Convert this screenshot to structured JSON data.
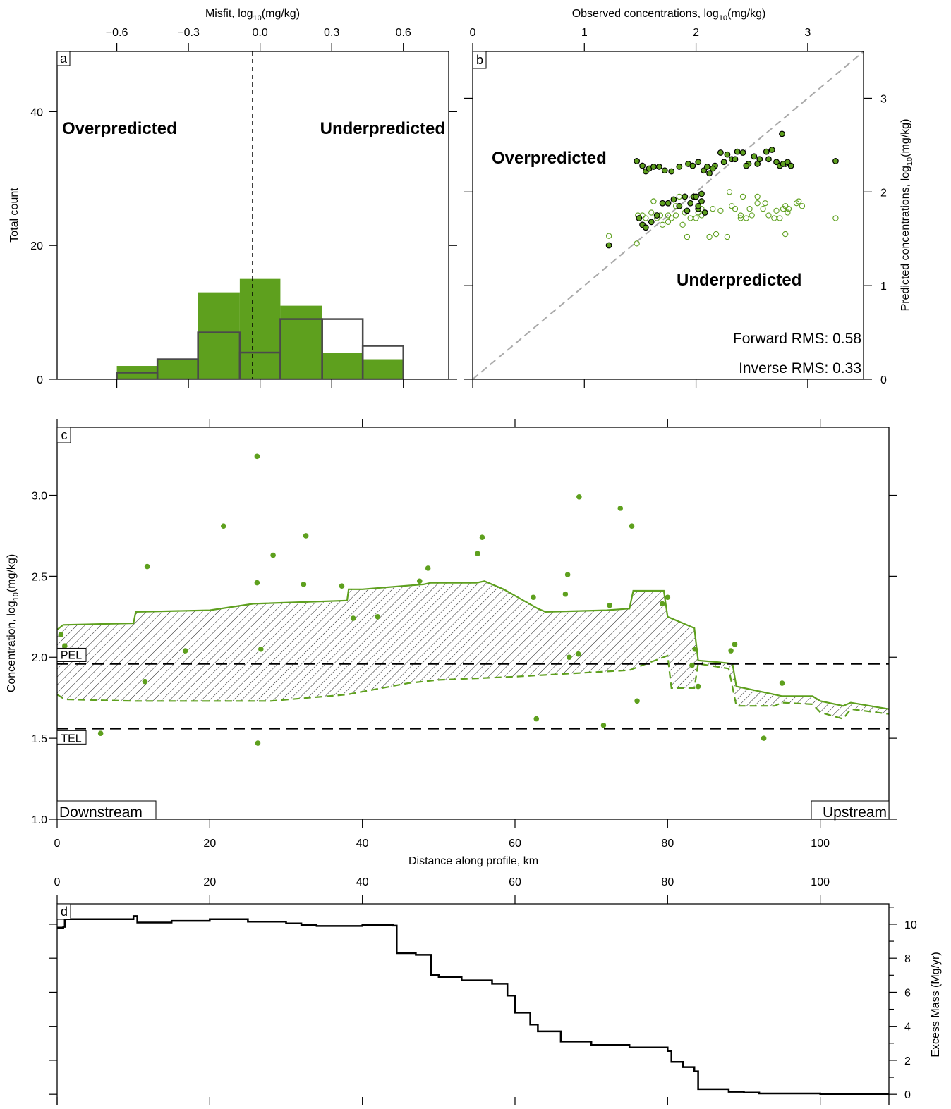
{
  "chart_data": [
    {
      "panel": "a",
      "type": "bar",
      "xlabel": "Misfit, log",
      "xlabel_sub": "10",
      "xlabel_tail": "(mg/kg)",
      "ylabel": "Total count",
      "xlim": [
        -0.85,
        0.79
      ],
      "ylim": [
        0,
        49
      ],
      "xticks": [
        -0.6,
        -0.3,
        0.0,
        0.3,
        0.6
      ],
      "xtick_labels": [
        "−0.6",
        "−0.3",
        "0.0",
        "0.3",
        "0.6"
      ],
      "yticks": [
        0,
        20,
        40
      ],
      "bin_edges": [
        -0.6,
        -0.43,
        -0.26,
        -0.085,
        0.085,
        0.26,
        0.43,
        0.6
      ],
      "series": [
        {
          "style": "filled",
          "color": "#5ea01e",
          "values": [
            2,
            3,
            13,
            15,
            11,
            4,
            3
          ]
        },
        {
          "style": "outline",
          "color": "#4a4a4a",
          "values": [
            1,
            3,
            7,
            4,
            9,
            9,
            5
          ]
        }
      ],
      "annotations": [
        "Overpredicted",
        "Underpredicted"
      ]
    },
    {
      "panel": "b",
      "type": "scatter",
      "xlabel": "Observed concentrations, log",
      "xlabel_sub": "10",
      "xlabel_tail": "(mg/kg)",
      "ylabel": "Predicted concentrations, log",
      "ylabel_sub": "10",
      "ylabel_tail": "(mg/kg)",
      "xlim": [
        0,
        3.5
      ],
      "ylim": [
        0,
        3.5
      ],
      "xticks": [
        0,
        1,
        2,
        3
      ],
      "yticks": [
        0,
        1,
        2,
        3
      ],
      "annotations": [
        "Overpredicted",
        "Underpredicted"
      ],
      "rms_labels": [
        "Forward RMS: 0.58",
        "Inverse RMS: 0.33"
      ],
      "series": [
        {
          "style": "filled",
          "color": "#5ea01e",
          "x": [
            1.22,
            1.47,
            1.52,
            1.55,
            1.58,
            1.62,
            1.67,
            1.72,
            1.78,
            1.85,
            1.93,
            1.97,
            2.02,
            2.07,
            2.12,
            2.17,
            2.22,
            2.28,
            2.32,
            2.37,
            2.42,
            2.47,
            2.52,
            2.57,
            2.63,
            2.68,
            2.72,
            2.77,
            2.8,
            2.85,
            3.25,
            1.49,
            1.52,
            1.55,
            1.6,
            1.65,
            1.75,
            1.85,
            1.95,
            2.02,
            2.08,
            1.98,
            2.0,
            2.05,
            1.9,
            2.1,
            2.15,
            2.25,
            2.35,
            2.45,
            2.55,
            2.65,
            2.75,
            2.78,
            2.82,
            1.7,
            1.8,
            1.92,
            2.02,
            2.05
          ],
          "y": [
            1.43,
            2.33,
            2.28,
            2.22,
            2.25,
            2.27,
            2.27,
            2.23,
            2.22,
            2.27,
            2.3,
            2.28,
            2.32,
            2.23,
            2.2,
            2.28,
            2.42,
            2.4,
            2.35,
            2.43,
            2.42,
            2.3,
            2.38,
            2.35,
            2.43,
            2.45,
            2.32,
            2.62,
            2.3,
            2.28,
            2.33,
            1.72,
            1.65,
            1.62,
            1.68,
            1.75,
            1.88,
            1.85,
            1.88,
            1.82,
            1.78,
            1.95,
            1.95,
            1.98,
            1.95,
            2.27,
            2.25,
            2.32,
            2.35,
            2.28,
            2.3,
            2.35,
            2.28,
            2.3,
            2.32,
            1.88,
            1.92,
            1.8,
            1.85,
            1.9
          ]
        },
        {
          "style": "open",
          "color": "#5ea01e",
          "x": [
            1.22,
            1.22,
            1.47,
            1.52,
            1.55,
            1.6,
            1.62,
            1.65,
            1.7,
            1.75,
            1.78,
            1.82,
            1.85,
            1.88,
            1.92,
            1.95,
            2.0,
            2.02,
            2.05,
            2.08,
            2.12,
            2.18,
            2.22,
            2.28,
            2.32,
            2.35,
            2.4,
            2.42,
            2.45,
            2.5,
            2.55,
            2.6,
            2.65,
            2.72,
            2.75,
            2.78,
            2.8,
            2.83,
            2.9,
            2.95,
            3.25,
            1.48,
            1.55,
            1.62,
            1.68,
            1.75,
            1.82,
            1.9,
            1.98,
            2.05,
            2.15,
            2.3,
            2.4,
            2.48,
            2.55,
            2.62,
            2.7,
            2.8,
            2.82,
            2.92
          ],
          "y": [
            1.53,
            1.43,
            1.45,
            1.75,
            1.72,
            1.78,
            1.9,
            1.72,
            1.65,
            1.75,
            1.72,
            1.75,
            1.95,
            1.65,
            1.52,
            1.72,
            1.72,
            1.78,
            1.75,
            1.78,
            1.52,
            1.55,
            1.8,
            1.52,
            1.85,
            1.82,
            1.72,
            1.95,
            1.72,
            1.75,
            1.88,
            1.82,
            1.75,
            1.8,
            1.72,
            1.82,
            1.55,
            1.82,
            1.88,
            1.85,
            1.72,
            1.75,
            1.62,
            1.9,
            1.75,
            1.68,
            1.85,
            1.78,
            1.95,
            1.82,
            1.82,
            2.0,
            1.75,
            1.82,
            1.95,
            1.88,
            1.72,
            1.85,
            1.78,
            1.9
          ]
        }
      ]
    },
    {
      "panel": "c",
      "type": "line",
      "xlabel": "Distance along profile, km",
      "ylabel": "Concentration, log",
      "ylabel_sub": "10",
      "ylabel_tail": "(mg/kg)",
      "xlim": [
        0,
        109
      ],
      "ylim": [
        1.0,
        3.42
      ],
      "xticks": [
        0,
        20,
        40,
        60,
        80,
        100
      ],
      "yticks": [
        1.0,
        1.5,
        2.0,
        2.5,
        3.0
      ],
      "ytick_labels": [
        "1.0",
        "1.5",
        "2.0",
        "2.5",
        "3.0"
      ],
      "thresholds": [
        {
          "name": "PEL",
          "value": 1.96
        },
        {
          "name": "TEL",
          "value": 1.56
        }
      ],
      "corner_labels": [
        "Downstream",
        "Upstream"
      ],
      "upper_line": {
        "x": [
          0,
          0.8,
          10,
          10.3,
          20,
          25.7,
          38,
          38.2,
          40,
          48,
          49,
          55,
          56,
          58.5,
          63,
          64,
          72,
          75,
          75.5,
          79.5,
          80,
          83.5,
          84,
          86.5,
          88.5,
          89,
          94,
          95,
          99,
          100,
          103,
          104,
          109
        ],
        "y": [
          2.17,
          2.2,
          2.21,
          2.28,
          2.29,
          2.33,
          2.35,
          2.42,
          2.42,
          2.45,
          2.46,
          2.46,
          2.47,
          2.42,
          2.3,
          2.28,
          2.29,
          2.3,
          2.41,
          2.41,
          2.25,
          2.18,
          1.98,
          1.97,
          1.96,
          1.82,
          1.77,
          1.76,
          1.76,
          1.73,
          1.7,
          1.72,
          1.68
        ]
      },
      "lower_line": {
        "x": [
          0,
          1,
          10,
          20,
          28,
          38,
          46,
          50,
          60,
          75,
          80,
          80.5,
          83.5,
          84,
          88,
          89,
          94,
          95,
          99,
          100,
          103,
          104,
          109
        ],
        "y": [
          1.77,
          1.74,
          1.73,
          1.73,
          1.73,
          1.77,
          1.84,
          1.86,
          1.88,
          1.92,
          2.01,
          1.81,
          1.81,
          1.96,
          1.93,
          1.7,
          1.7,
          1.72,
          1.71,
          1.66,
          1.62,
          1.68,
          1.65
        ]
      },
      "observations": {
        "x": [
          0.5,
          1,
          11.5,
          11.8,
          5.7,
          16.8,
          21.8,
          26.2,
          26.2,
          26.3,
          26.7,
          28.3,
          32.3,
          32.6,
          38.8,
          37.3,
          42,
          47.5,
          48.6,
          55.1,
          55.7,
          62.4,
          62.8,
          66.6,
          66.9,
          67.1,
          68.3,
          68.4,
          71.6,
          72.4,
          73.8,
          75.3,
          76,
          79.3,
          80,
          83.2,
          83.6,
          84,
          88.3,
          88.8,
          92.6,
          95
        ],
        "y": [
          2.14,
          2.07,
          1.85,
          2.56,
          1.53,
          2.04,
          2.81,
          3.24,
          2.46,
          1.47,
          2.05,
          2.63,
          2.45,
          2.75,
          2.24,
          2.44,
          2.25,
          2.47,
          2.55,
          2.64,
          2.74,
          2.37,
          1.62,
          2.39,
          2.51,
          2.0,
          2.02,
          2.99,
          1.58,
          2.32,
          2.92,
          2.81,
          1.73,
          2.33,
          2.37,
          1.95,
          2.05,
          1.82,
          2.04,
          2.08,
          1.5,
          1.84
        ]
      },
      "color": "#5ea01e"
    },
    {
      "panel": "d",
      "type": "line",
      "ylabel": "Excess Mass (Mg/yr)",
      "xlim": [
        0,
        109
      ],
      "ylim": [
        -0.2,
        11.2
      ],
      "xticks": [
        0,
        20,
        40,
        60,
        80,
        100
      ],
      "yticks": [
        0,
        2,
        4,
        6,
        8,
        10
      ],
      "series": [
        {
          "x": [
            0,
            0.8,
            1,
            10,
            10.5,
            15,
            20,
            25,
            30,
            32,
            34,
            40,
            44,
            44.5,
            47,
            49,
            50,
            53,
            57,
            59,
            60,
            62,
            63,
            66,
            70,
            75,
            80,
            80.5,
            82,
            83.5,
            84,
            88,
            90,
            92,
            100,
            109
          ],
          "y": [
            9.8,
            9.85,
            10.3,
            10.48,
            10.1,
            10.2,
            10.3,
            10.15,
            10.05,
            9.95,
            9.9,
            9.95,
            9.92,
            8.3,
            8.2,
            7.0,
            6.9,
            6.7,
            6.5,
            5.8,
            4.8,
            4.1,
            3.7,
            3.1,
            2.9,
            2.75,
            2.55,
            1.9,
            1.6,
            1.35,
            0.3,
            0.15,
            0.1,
            0.05,
            0.02,
            0.0
          ],
          "color": "#000000"
        }
      ]
    }
  ]
}
